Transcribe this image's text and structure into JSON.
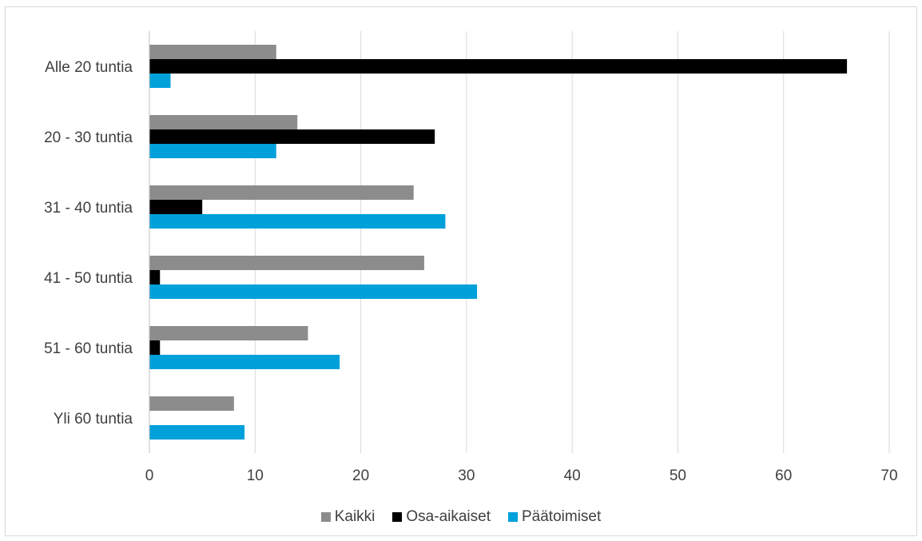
{
  "chart_data": {
    "type": "bar",
    "orientation": "horizontal",
    "categories": [
      "Alle 20 tuntia",
      "20 - 30 tuntia",
      "31 - 40 tuntia",
      "41 - 50 tuntia",
      "51 - 60 tuntia",
      "Yli 60 tuntia"
    ],
    "series": [
      {
        "name": "Kaikki",
        "color": "#8c8c8c",
        "values": [
          12,
          14,
          25,
          26,
          15,
          8
        ]
      },
      {
        "name": "Osa-aikaiset",
        "color": "#000000",
        "values": [
          66,
          27,
          5,
          1,
          1,
          0
        ]
      },
      {
        "name": "Päätoimiset",
        "color": "#00a0db",
        "values": [
          2,
          12,
          28,
          31,
          18,
          9
        ]
      }
    ],
    "xlim": [
      0,
      70
    ],
    "xticks": [
      "0",
      "10",
      "20",
      "30",
      "40",
      "50",
      "60",
      "70"
    ],
    "grid": "vertical",
    "legend": "bottom"
  }
}
